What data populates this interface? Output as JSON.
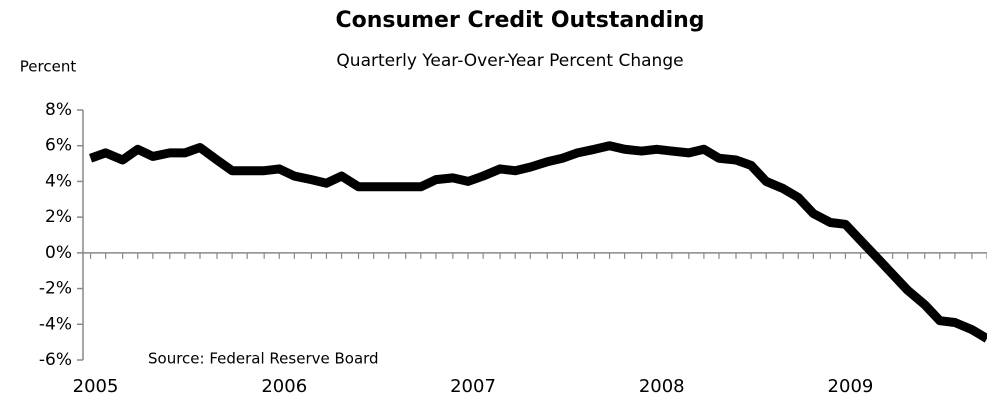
{
  "chart_data": {
    "type": "line",
    "title": "Consumer Credit Outstanding",
    "subtitle": "Quarterly Year-Over-Year Percent Change",
    "y_label": "Percent",
    "annotation": "Source: Federal Reserve Board",
    "x": [
      2005,
      2005.08,
      2005.17,
      2005.25,
      2005.33,
      2005.42,
      2005.5,
      2005.58,
      2005.67,
      2005.75,
      2005.83,
      2005.92,
      2006,
      2006.08,
      2006.17,
      2006.25,
      2006.33,
      2006.42,
      2006.5,
      2006.58,
      2006.67,
      2006.75,
      2006.83,
      2006.92,
      2007,
      2007.08,
      2007.17,
      2007.25,
      2007.33,
      2007.42,
      2007.5,
      2007.58,
      2007.67,
      2007.75,
      2007.83,
      2007.92,
      2008,
      2008.08,
      2008.17,
      2008.25,
      2008.33,
      2008.42,
      2008.5,
      2008.58,
      2008.67,
      2008.75,
      2008.83,
      2008.92,
      2009,
      2009.08,
      2009.17,
      2009.25,
      2009.33,
      2009.42,
      2009.5,
      2009.58,
      2009.67,
      2009.75
    ],
    "series": [
      {
        "name": "Consumer Credit",
        "color": "#000000",
        "values": [
          5.3,
          5.6,
          5.2,
          5.8,
          5.4,
          5.6,
          5.6,
          5.9,
          5.2,
          4.6,
          4.6,
          4.6,
          4.7,
          4.3,
          4.1,
          3.9,
          4.3,
          3.7,
          3.7,
          3.7,
          3.7,
          3.7,
          4.1,
          4.2,
          4.0,
          4.3,
          4.7,
          4.6,
          4.8,
          5.1,
          5.3,
          5.6,
          5.8,
          6.0,
          5.8,
          5.7,
          5.8,
          5.7,
          5.6,
          5.8,
          5.3,
          5.2,
          4.9,
          4.0,
          3.6,
          3.1,
          2.2,
          1.7,
          1.6,
          0.7,
          -0.3,
          -1.2,
          -2.1,
          -2.9,
          -3.8,
          -3.9,
          -4.3,
          -4.8
        ]
      }
    ],
    "xlim": [
      2004.96,
      2009.75
    ],
    "xticks": [
      2005,
      2006,
      2007,
      2008,
      2009
    ],
    "ylim": [
      -6,
      8
    ],
    "yticks": [
      {
        "value": -6,
        "label": "-6%"
      },
      {
        "value": -4,
        "label": "-4%"
      },
      {
        "value": -2,
        "label": "-2%"
      },
      {
        "value": 0,
        "label": "0%"
      },
      {
        "value": 2,
        "label": "2%"
      },
      {
        "value": 4,
        "label": "4%"
      },
      {
        "value": 6,
        "label": "6%"
      },
      {
        "value": 8,
        "label": "8%"
      }
    ],
    "grid": false
  }
}
